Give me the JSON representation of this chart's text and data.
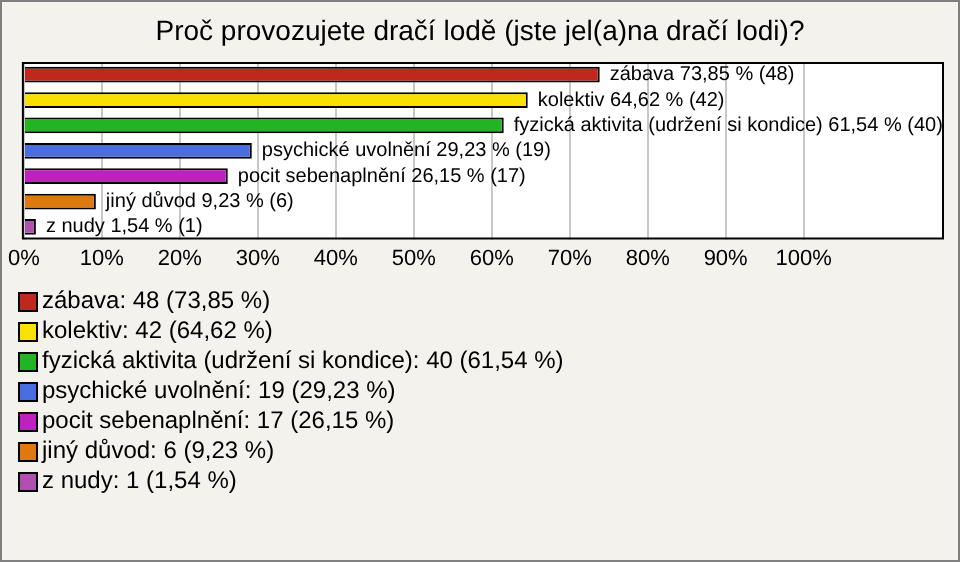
{
  "chart_data": {
    "type": "bar",
    "orientation": "horizontal",
    "title": "Proč provozujete dračí lodě (jste jel(a)na dračí lodi)?",
    "categories": [
      "zábava",
      "kolektiv",
      "fyzická aktivita (udržení si kondice)",
      "psychické uvolnění",
      "pocit sebenaplnění",
      "jiný důvod",
      "z nudy"
    ],
    "values": [
      73.85,
      64.62,
      61.54,
      29.23,
      26.15,
      9.23,
      1.54
    ],
    "value_labels": [
      "73,85 % (48)",
      "64,62 % (42)",
      "61,54 % (40)",
      "29,23 % (19)",
      "26,15 % (17)",
      "9,23 % (6)",
      "1,54 % (1)"
    ],
    "colors": [
      "#c0281e",
      "#f8e000",
      "#22b422",
      "#4a6ee0",
      "#c020c0",
      "#e07810",
      "#b050b0"
    ],
    "xlim": [
      0,
      118
    ],
    "xticks": [
      {
        "value": 0,
        "label": "0%"
      },
      {
        "value": 10,
        "label": "10%"
      },
      {
        "value": 20,
        "label": "20%"
      },
      {
        "value": 30,
        "label": "30%"
      },
      {
        "value": 40,
        "label": "40%"
      },
      {
        "value": 50,
        "label": "50%"
      },
      {
        "value": 60,
        "label": "60%"
      },
      {
        "value": 70,
        "label": "70%"
      },
      {
        "value": 80,
        "label": "80%"
      },
      {
        "value": 90,
        "label": "90%"
      },
      {
        "value": 100,
        "label": "100%"
      }
    ],
    "grid": "x",
    "annotations": [
      "zábava: 48 (73,85 %)",
      "kolektiv: 42 (64,62 %)",
      "fyzická aktivita (udržení si kondice): 40 (61,54 %)",
      "psychické uvolnění: 19 (29,23 %)",
      "pocit sebenaplnění: 17 (26,15 %)",
      "jiný důvod: 6 (9,23 %)",
      "z nudy: 1 (1,54 %)"
    ]
  }
}
